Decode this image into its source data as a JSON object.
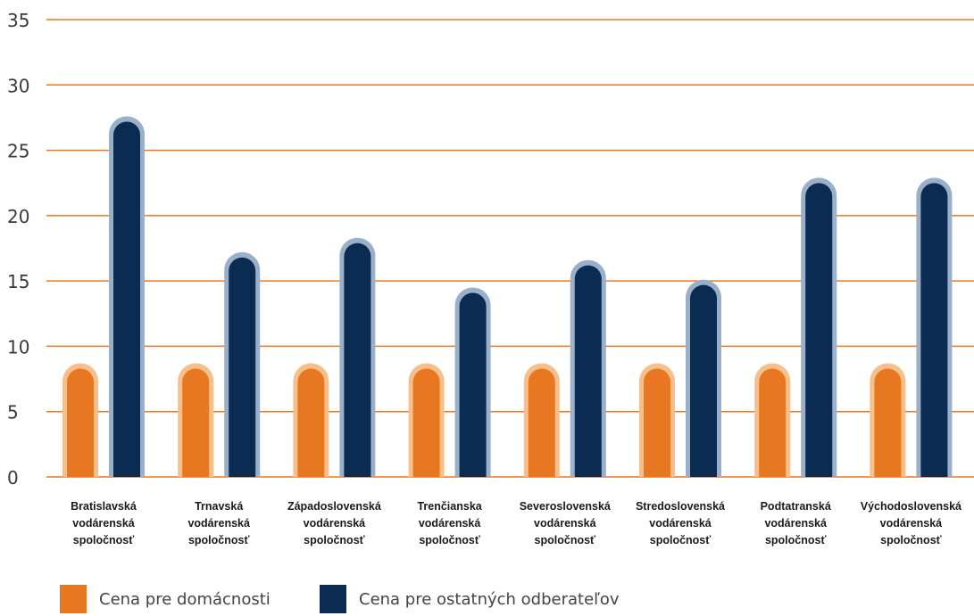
{
  "chart_data": {
    "type": "bar",
    "title": "",
    "xlabel": "",
    "ylabel": "",
    "ylim": [
      0,
      35
    ],
    "yticks": [
      0,
      5,
      10,
      15,
      20,
      25,
      30,
      35
    ],
    "grid": true,
    "legend_position": "bottom-left",
    "categories": [
      [
        "Bratislavská",
        "vodárenská",
        "spoločnosť"
      ],
      [
        "Trnavská",
        "vodárenská",
        "spoločnosť"
      ],
      [
        "Západoslovenská",
        "vodárenská",
        "spoločnosť"
      ],
      [
        "Trenčianska",
        "vodárenská",
        "spoločnosť"
      ],
      [
        "Severoslovenská",
        "vodárenská",
        "spoločnosť"
      ],
      [
        "Stredoslovenská",
        "vodárenská",
        "spoločnosť"
      ],
      [
        "Podtatranská",
        "vodárenská",
        "spoločnosť"
      ],
      [
        "Východoslovenská",
        "vodárenská",
        "spoločnosť"
      ]
    ],
    "series": [
      {
        "name": "Cena pre domácnosti",
        "color": "#E87722",
        "highlight": "#F7C08A",
        "values": [
          8.7,
          8.7,
          8.7,
          8.7,
          8.7,
          8.7,
          8.7,
          8.7
        ]
      },
      {
        "name": "Cena pre ostatných odberateľov",
        "color": "#0B2C52",
        "highlight": "#9AAFC8",
        "values": [
          27.6,
          17.2,
          18.3,
          14.5,
          16.6,
          15.1,
          22.9,
          22.9
        ]
      }
    ],
    "gridline_color": "#E87722"
  }
}
